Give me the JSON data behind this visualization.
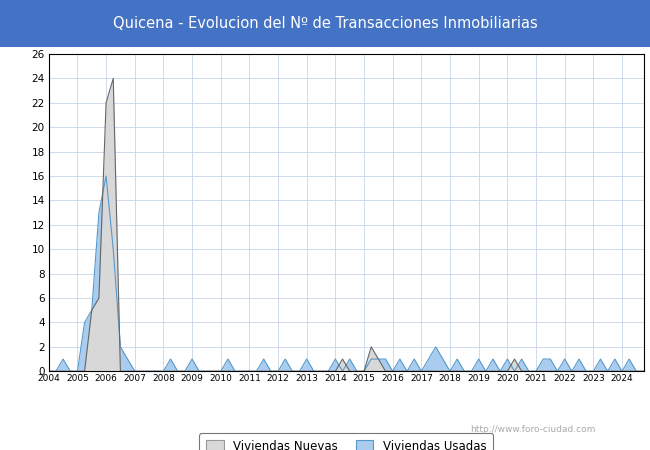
{
  "title": "Quicena - Evolucion del Nº de Transacciones Inmobiliarias",
  "title_bg_color": "#4472C4",
  "title_text_color": "white",
  "background_color": "#ffffff",
  "plot_bg_color": "#ffffff",
  "grid_color": "#c8d4e8",
  "ylim": [
    0,
    26
  ],
  "yticks": [
    0,
    2,
    4,
    6,
    8,
    10,
    12,
    14,
    16,
    18,
    20,
    22,
    24,
    26
  ],
  "nuevas_color": "#666666",
  "nuevas_fill": "#d8d8d8",
  "usadas_color": "#5599cc",
  "usadas_fill": "#aaccee",
  "legend_nuevas": "Viviendas Nuevas",
  "legend_usadas": "Viviendas Usadas",
  "watermark": "http://www.foro-ciudad.com",
  "x_quarterly": [
    2004.0,
    2004.25,
    2004.5,
    2004.75,
    2005.0,
    2005.25,
    2005.5,
    2005.75,
    2006.0,
    2006.25,
    2006.5,
    2006.75,
    2007.0,
    2007.25,
    2007.5,
    2007.75,
    2008.0,
    2008.25,
    2008.5,
    2008.75,
    2009.0,
    2009.25,
    2009.5,
    2009.75,
    2010.0,
    2010.25,
    2010.5,
    2010.75,
    2011.0,
    2011.25,
    2011.5,
    2011.75,
    2012.0,
    2012.25,
    2012.5,
    2012.75,
    2013.0,
    2013.25,
    2013.5,
    2013.75,
    2014.0,
    2014.25,
    2014.5,
    2014.75,
    2015.0,
    2015.25,
    2015.5,
    2015.75,
    2016.0,
    2016.25,
    2016.5,
    2016.75,
    2017.0,
    2017.25,
    2017.5,
    2017.75,
    2018.0,
    2018.25,
    2018.5,
    2018.75,
    2019.0,
    2019.25,
    2019.5,
    2019.75,
    2020.0,
    2020.25,
    2020.5,
    2020.75,
    2021.0,
    2021.25,
    2021.5,
    2021.75,
    2022.0,
    2022.25,
    2022.5,
    2022.75,
    2023.0,
    2023.25,
    2023.5,
    2023.75,
    2024.0,
    2024.25,
    2024.5,
    2024.75
  ],
  "nuevas_q": [
    0,
    0,
    0,
    0,
    0,
    0,
    5,
    6,
    22,
    24,
    0,
    0,
    0,
    0,
    0,
    0,
    0,
    0,
    0,
    0,
    0,
    0,
    0,
    0,
    0,
    0,
    0,
    0,
    0,
    0,
    0,
    0,
    0,
    0,
    0,
    0,
    0,
    0,
    0,
    0,
    0,
    1,
    0,
    0,
    0,
    2,
    1,
    0,
    0,
    0,
    0,
    0,
    0,
    0,
    0,
    0,
    0,
    0,
    0,
    0,
    0,
    0,
    0,
    0,
    0,
    1,
    0,
    0,
    0,
    0,
    0,
    0,
    0,
    0,
    0,
    0,
    0,
    0,
    0,
    0,
    0,
    0,
    0,
    0
  ],
  "usadas_q": [
    0,
    0,
    1,
    0,
    0,
    4,
    5,
    13,
    16,
    10,
    2,
    1,
    0,
    0,
    0,
    0,
    0,
    1,
    0,
    0,
    1,
    0,
    0,
    0,
    0,
    1,
    0,
    0,
    0,
    0,
    1,
    0,
    0,
    1,
    0,
    0,
    1,
    0,
    0,
    0,
    1,
    0,
    1,
    0,
    0,
    1,
    1,
    1,
    0,
    1,
    0,
    1,
    0,
    1,
    2,
    1,
    0,
    1,
    0,
    0,
    1,
    0,
    1,
    0,
    1,
    0,
    1,
    0,
    0,
    1,
    1,
    0,
    1,
    0,
    1,
    0,
    0,
    1,
    0,
    1,
    0,
    1,
    0,
    0
  ]
}
